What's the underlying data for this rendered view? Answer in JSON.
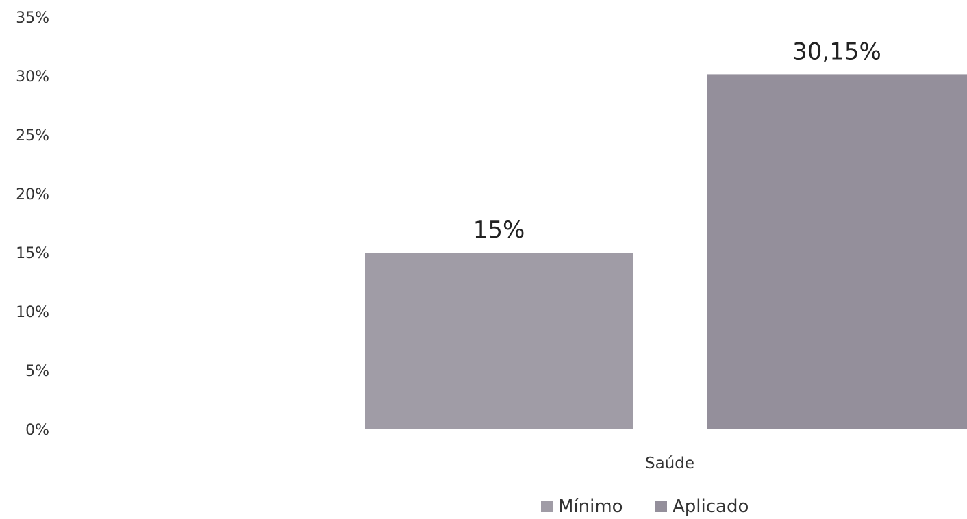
{
  "chart_data": {
    "type": "bar",
    "categories": [
      "Saúde"
    ],
    "series": [
      {
        "name": "Mínimo",
        "values": [
          15
        ],
        "label": "15%",
        "color": "#a09ca6"
      },
      {
        "name": "Aplicado",
        "values": [
          30.15
        ],
        "label": "30,15%",
        "color": "#948f9b"
      }
    ],
    "ylim": [
      0,
      35
    ],
    "yticks": [
      {
        "value": 35,
        "label": "35%"
      },
      {
        "value": 30,
        "label": "30%"
      },
      {
        "value": 25,
        "label": "25%"
      },
      {
        "value": 20,
        "label": "20%"
      },
      {
        "value": 15,
        "label": "15%"
      },
      {
        "value": 10,
        "label": "10%"
      },
      {
        "value": 5,
        "label": "5%"
      },
      {
        "value": 0,
        "label": "0%"
      }
    ],
    "grid": false,
    "legend_position": "bottom"
  }
}
